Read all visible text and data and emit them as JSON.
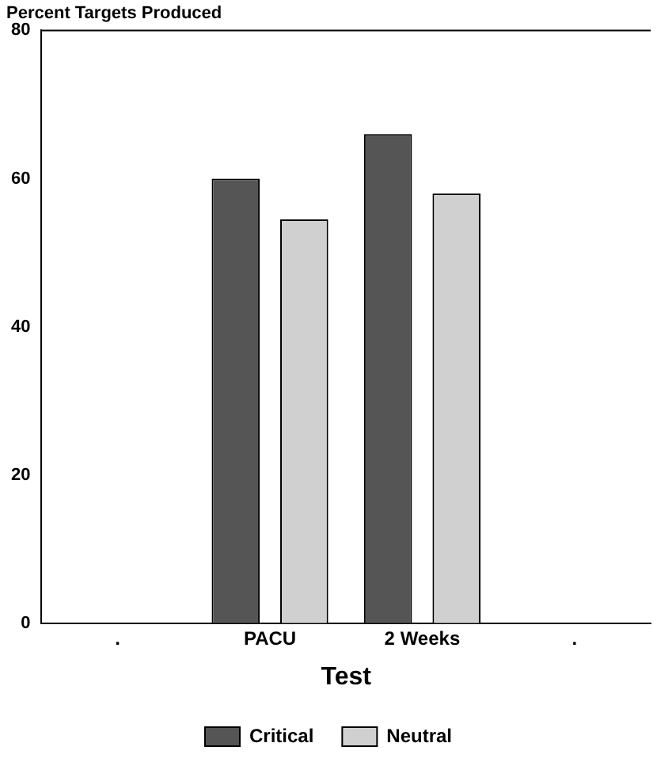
{
  "chart_data": {
    "type": "bar",
    "ylabel": "Percent Targets Produced",
    "xlabel": "Test",
    "categories": [
      ".",
      "PACU",
      "2 Weeks",
      "."
    ],
    "series": [
      {
        "name": "Critical",
        "color": "#555555",
        "values": [
          null,
          60,
          66,
          null
        ]
      },
      {
        "name": "Neutral",
        "color": "#d0d0d0",
        "values": [
          null,
          54.5,
          58,
          null
        ]
      }
    ],
    "ylim": [
      0,
      80
    ],
    "yticks": [
      0,
      20,
      40,
      60,
      80
    ],
    "grid": false,
    "legend": "bottom"
  }
}
